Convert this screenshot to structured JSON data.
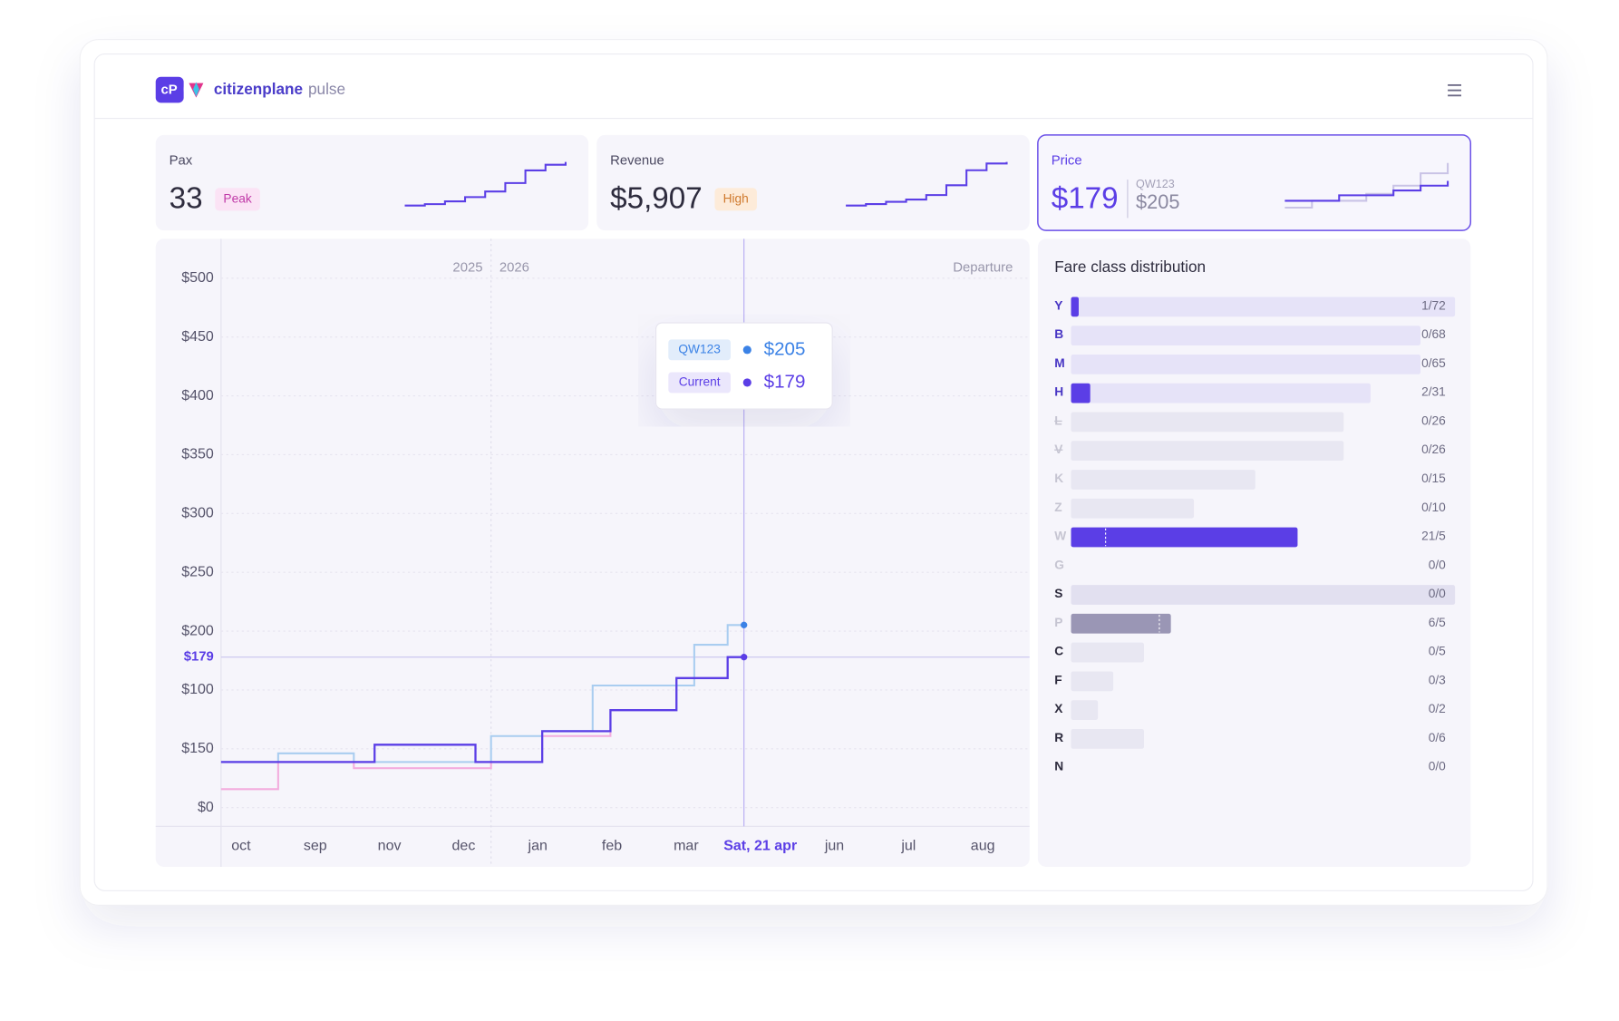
{
  "header": {
    "brand": "citizenplane",
    "product": "pulse"
  },
  "cards": [
    {
      "label": "Pax",
      "value": "33",
      "badge": "Peak",
      "sparkline": [
        2,
        3,
        5,
        8,
        12,
        18,
        27,
        31,
        33
      ]
    },
    {
      "label": "Revenue",
      "value": "$5,907",
      "badge": "High",
      "sparkline": [
        100,
        300,
        600,
        900,
        1500,
        2800,
        4800,
        5700,
        5907
      ]
    },
    {
      "label": "Price",
      "value": "$179",
      "compare_label": "QW123",
      "compare_value": "$205",
      "sparkline": [
        150,
        150,
        158,
        158,
        165,
        172,
        179
      ],
      "compare_sparkline": [
        140,
        150,
        150,
        160,
        172,
        190,
        205
      ]
    }
  ],
  "chart_data": {
    "type": "step",
    "period_labels": [
      "2025",
      "2026"
    ],
    "axis_title": "Departure",
    "categories": [
      "oct",
      "sep",
      "nov",
      "dec",
      "jan",
      "feb",
      "mar",
      "Sat, 21 apr",
      "jun",
      "jul",
      "aug"
    ],
    "highlighted_category": 7,
    "y_axis_labels": [
      "$500",
      "$450",
      "$400",
      "$350",
      "$300",
      "$250",
      "$200",
      "$100",
      "$150",
      "$0"
    ],
    "marker_label": "$179",
    "xlim": [
      -0.27,
      10.63
    ],
    "ylim": [
      57,
      486
    ],
    "year_boundary_x": 3.37,
    "cursor_x": 6.78,
    "series": [
      {
        "name": "Current",
        "color": "#5b3ee6",
        "x": [
          -0.27,
          1.8,
          3.16,
          4.06,
          4.98,
          5.87,
          6.56,
          6.78
        ],
        "values": [
          94,
          108,
          94,
          119,
          136,
          162,
          179,
          179
        ]
      },
      {
        "name": "QW123",
        "color": "#a9cdf0",
        "x": [
          -0.27,
          0.5,
          1.52,
          3.37,
          4.06,
          4.74,
          6.11,
          6.56,
          6.78
        ],
        "values": [
          94,
          101,
          94,
          115,
          119,
          156,
          189,
          205,
          205
        ]
      },
      {
        "color": "#f3acde",
        "x": [
          -0.27,
          0.5,
          1.52,
          3.37,
          4.06,
          4.98
        ],
        "values": [
          72,
          94,
          89,
          94,
          115,
          119
        ]
      }
    ],
    "tooltip": [
      {
        "tag": "QW123",
        "value": "$205",
        "color": "#3b82e6"
      },
      {
        "tag": "Current",
        "value": "$179",
        "color": "#5b3ee6"
      }
    ]
  },
  "fare_distribution": {
    "title": "Fare class distribution",
    "rows": [
      {
        "class": "Y",
        "label": "1/72",
        "status": "active",
        "allocation": 100,
        "fill": 2
      },
      {
        "class": "B",
        "label": "0/68",
        "status": "active",
        "allocation": 91,
        "fill": 0
      },
      {
        "class": "M",
        "label": "0/65",
        "status": "active",
        "allocation": 91,
        "fill": 0
      },
      {
        "class": "H",
        "label": "2/31",
        "status": "active",
        "allocation": 78,
        "fill": 5
      },
      {
        "class": "L",
        "label": "0/26",
        "status": "struck",
        "allocation": 71,
        "fill": 0
      },
      {
        "class": "V",
        "label": "0/26",
        "status": "struck",
        "allocation": 71,
        "fill": 0
      },
      {
        "class": "K",
        "label": "0/15",
        "status": "closed",
        "allocation": 48,
        "fill": 0
      },
      {
        "class": "Z",
        "label": "0/10",
        "status": "closed",
        "allocation": 32,
        "fill": 0
      },
      {
        "class": "W",
        "label": "21/5",
        "status": "closed",
        "allocation": 59,
        "fill": 59,
        "marker": 9
      },
      {
        "class": "G",
        "label": "0/0",
        "status": "closed",
        "allocation": 0,
        "fill": 0
      },
      {
        "class": "S",
        "label": "0/0",
        "status": "open",
        "allocation": 100,
        "fill": 0
      },
      {
        "class": "P",
        "label": "6/5",
        "status": "closed",
        "allocation": 26,
        "fill": 26,
        "marker": 23
      },
      {
        "class": "C",
        "label": "0/5",
        "status": "open",
        "allocation": 19,
        "fill": 0
      },
      {
        "class": "F",
        "label": "0/3",
        "status": "open",
        "allocation": 11,
        "fill": 0
      },
      {
        "class": "X",
        "label": "0/2",
        "status": "open",
        "allocation": 7,
        "fill": 0
      },
      {
        "class": "R",
        "label": "0/6",
        "status": "open",
        "allocation": 19,
        "fill": 0
      },
      {
        "class": "N",
        "label": "0/0",
        "status": "open",
        "allocation": 0,
        "fill": 0
      }
    ]
  }
}
